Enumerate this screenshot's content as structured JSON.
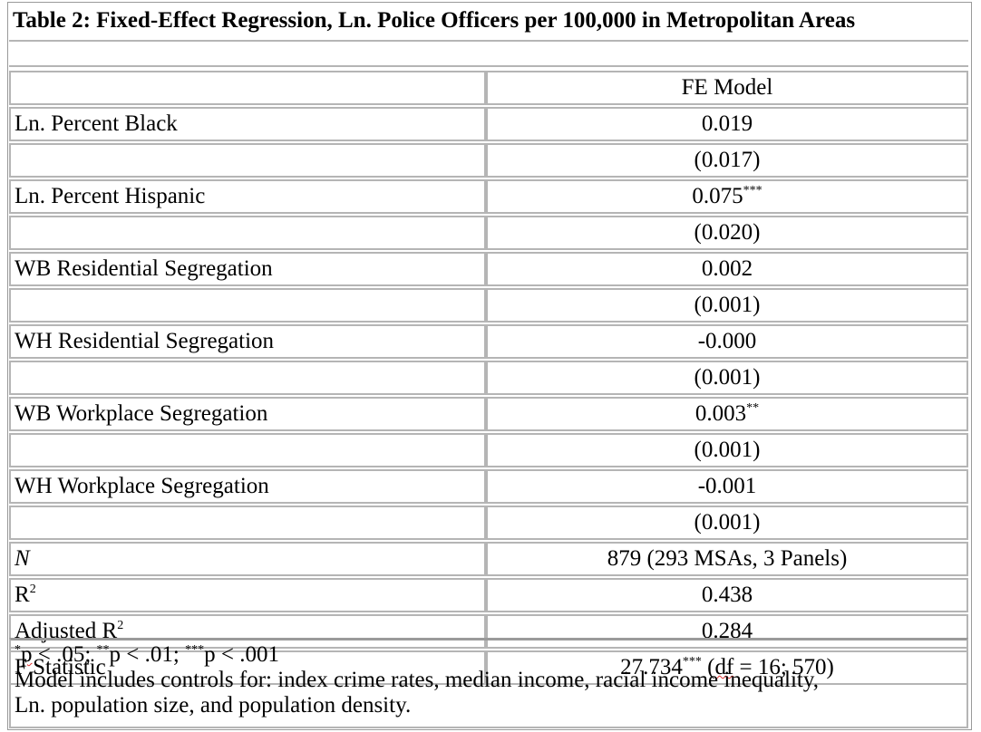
{
  "title": "Table 2: Fixed-Effect Regression, Ln. Police Officers per 100,000 in Metropolitan Areas",
  "header": {
    "column_label": "FE Model"
  },
  "rows": [
    {
      "label": "Ln. Percent Black",
      "coef": "0.019",
      "stars": "",
      "se": "(0.017)"
    },
    {
      "label": "Ln. Percent Hispanic",
      "coef": "0.075",
      "stars": "***",
      "se": "(0.020)"
    },
    {
      "label": "WB Residential Segregation",
      "coef": "0.002",
      "stars": "",
      "se": "(0.001)"
    },
    {
      "label": "WH Residential Segregation",
      "coef": "-0.000",
      "stars": "",
      "se": "(0.001)"
    },
    {
      "label": "WB Workplace Segregation",
      "coef": "0.003",
      "stars": "**",
      "se": "(0.001)"
    },
    {
      "label": "WH Workplace Segregation",
      "coef": "-0.001",
      "stars": "",
      "se": "(0.001)"
    }
  ],
  "stats": {
    "n_label": "N",
    "n_value": "879 (293 MSAs, 3 Panels)",
    "r2_label": "R",
    "r2_sup": "2",
    "r2_value": "0.438",
    "adj_r2_label": "Adjusted R",
    "adj_r2_sup": "2",
    "adj_r2_value": "0.284",
    "f_label": "F Statistic",
    "f_value": "27.734",
    "f_stars": "***",
    "f_df_pre": " (",
    "f_df_word": "df",
    "f_df_post": " = 16; 570)"
  },
  "notes": {
    "sig": {
      "s1": "*",
      "t1": "p",
      "t1b": " < .05; ",
      "s2": "**",
      "t2": "p < .01; ",
      "s3": "***",
      "t3": "p < .001"
    },
    "line2": "Model includes controls for: index crime rates, median income, racial income inequality,",
    "line3": "Ln. population size, and population density."
  }
}
